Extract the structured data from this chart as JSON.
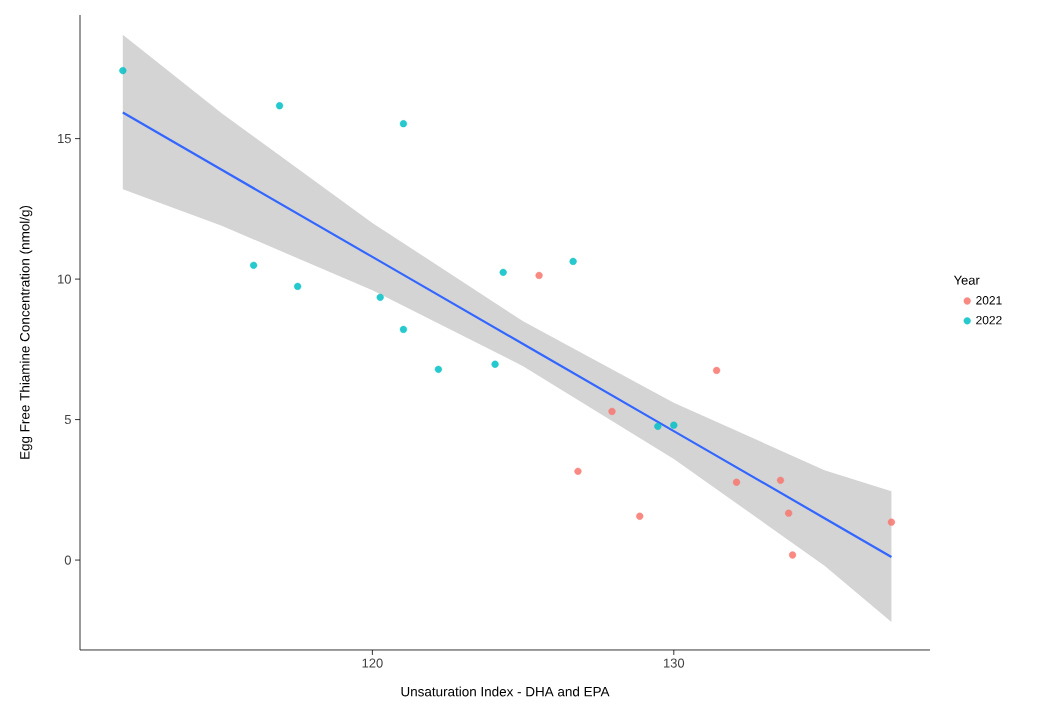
{
  "chart_data": {
    "type": "scatter",
    "xlabel": "Unsaturation Index - DHA and EPA",
    "ylabel": "Egg Free Thiamine Concentration (nmol/g)",
    "legend_title": "Year",
    "legend": "right",
    "grid": false,
    "xlim": [
      110.3,
      138.5
    ],
    "ylim": [
      -3.2,
      19.4
    ],
    "xticks": [
      120,
      130
    ],
    "yticks": [
      0,
      5,
      10,
      15
    ],
    "series": [
      {
        "name": "2021",
        "marker": "circle",
        "color": "#f8766d",
        "x": [
          125.53,
          126.82,
          127.95,
          128.87,
          131.42,
          132.08,
          133.54,
          133.81,
          133.94,
          137.22
        ],
        "values": [
          10.13,
          3.16,
          5.29,
          1.56,
          6.75,
          2.77,
          2.84,
          1.67,
          0.18,
          1.35
        ]
      },
      {
        "name": "2022",
        "marker": "circle",
        "color": "#00bfc4",
        "x": [
          111.72,
          116.92,
          121.03,
          116.06,
          117.52,
          120.26,
          121.03,
          122.19,
          124.07,
          124.34,
          126.66,
          129.47,
          130.0
        ],
        "values": [
          17.42,
          16.17,
          15.53,
          10.49,
          9.74,
          9.35,
          8.21,
          6.79,
          6.97,
          10.24,
          10.63,
          4.76,
          4.8
        ]
      },
      {
        "type": "line",
        "marker": "none",
        "color": "#3366ff",
        "x": [
          111.72,
          115,
          120,
          125,
          130,
          135,
          137.22
        ],
        "values": [
          15.93,
          13.89,
          10.79,
          7.69,
          4.59,
          1.49,
          0.11
        ],
        "lower": [
          13.2,
          11.9,
          9.6,
          6.9,
          3.6,
          -0.2,
          -2.2
        ],
        "upper": [
          18.7,
          15.9,
          12.0,
          8.5,
          5.6,
          3.2,
          2.45
        ]
      }
    ]
  }
}
